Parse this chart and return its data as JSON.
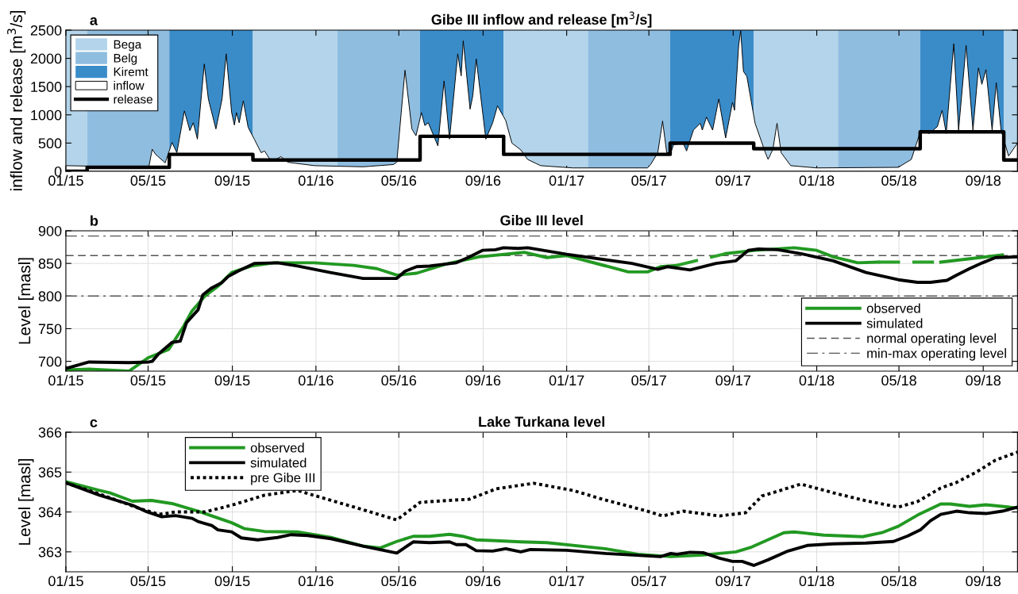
{
  "chart_data": [
    {
      "type": "area",
      "title": "Gibe III inflow and release [m$^{3}$/s]",
      "ylabel": "inflow and release [m$^{3}$/s]",
      "annotations": [
        "a"
      ],
      "xlim": [
        "2015-01-01",
        "2018-10-21"
      ],
      "xticks": [
        {
          "value": "2015-01-01",
          "label": "01/15"
        },
        {
          "value": "2015-05-01",
          "label": "05/15"
        },
        {
          "value": "2015-09-01",
          "label": "09/15"
        },
        {
          "value": "2016-01-01",
          "label": "01/16"
        },
        {
          "value": "2016-05-01",
          "label": "05/16"
        },
        {
          "value": "2016-09-01",
          "label": "09/16"
        },
        {
          "value": "2017-01-01",
          "label": "01/17"
        },
        {
          "value": "2017-05-01",
          "label": "05/17"
        },
        {
          "value": "2017-09-01",
          "label": "09/17"
        },
        {
          "value": "2018-01-01",
          "label": "01/18"
        },
        {
          "value": "2018-05-01",
          "label": "05/18"
        },
        {
          "value": "2018-09-01",
          "label": "09/18"
        }
      ],
      "ylim": [
        0,
        2500
      ],
      "yticks": [
        0,
        500,
        1000,
        1500,
        2000,
        2500
      ],
      "legend": "top left",
      "bands": [
        {
          "axis": "x",
          "from": "2015-01-01",
          "to": "2015-02-01",
          "label": "Bega",
          "color": "#b3d4ea"
        },
        {
          "axis": "x",
          "from": "2015-02-01",
          "to": "2015-06-01",
          "label": "Belg",
          "color": "#8fbde0"
        },
        {
          "axis": "x",
          "from": "2015-06-01",
          "to": "2015-10-01",
          "label": "Kiremt",
          "color": "#3a8cc9"
        },
        {
          "axis": "x",
          "from": "2015-10-01",
          "to": "2016-02-01",
          "color": "#b3d4ea"
        },
        {
          "axis": "x",
          "from": "2016-02-01",
          "to": "2016-06-01",
          "color": "#8fbde0"
        },
        {
          "axis": "x",
          "from": "2016-06-01",
          "to": "2016-10-01",
          "color": "#3a8cc9"
        },
        {
          "axis": "x",
          "from": "2016-10-01",
          "to": "2017-02-01",
          "color": "#b3d4ea"
        },
        {
          "axis": "x",
          "from": "2017-02-01",
          "to": "2017-06-01",
          "color": "#8fbde0"
        },
        {
          "axis": "x",
          "from": "2017-06-01",
          "to": "2017-10-01",
          "color": "#3a8cc9"
        },
        {
          "axis": "x",
          "from": "2017-10-01",
          "to": "2018-02-01",
          "color": "#b3d4ea"
        },
        {
          "axis": "x",
          "from": "2018-02-01",
          "to": "2018-06-01",
          "color": "#8fbde0"
        },
        {
          "axis": "x",
          "from": "2018-06-01",
          "to": "2018-10-01",
          "color": "#3a8cc9"
        },
        {
          "axis": "x",
          "from": "2018-10-01",
          "to": "2018-10-21",
          "color": "#b3d4ea"
        }
      ],
      "series": [
        {
          "name": "inflow",
          "type": "area",
          "color": "#ffffff",
          "x": [
            "2015-01-01",
            "2015-05-02",
            "2015-05-07",
            "2015-05-12",
            "2015-05-26",
            "2015-06-05",
            "2015-06-12",
            "2015-06-23",
            "2015-07-01",
            "2015-07-06",
            "2015-07-12",
            "2015-07-22",
            "2015-07-28",
            "2015-08-08",
            "2015-08-17",
            "2015-08-23",
            "2015-08-31",
            "2015-09-04",
            "2015-09-07",
            "2015-09-11",
            "2015-09-17",
            "2015-09-24",
            "2015-10-03",
            "2015-10-13",
            "2015-10-18",
            "2015-10-28",
            "2015-11-11",
            "2015-11-21",
            "2015-12-30",
            "2016-03-10",
            "2016-04-23",
            "2016-04-28",
            "2016-05-10",
            "2016-05-20",
            "2016-05-26",
            "2016-06-03",
            "2016-06-08",
            "2016-06-13",
            "2016-06-27",
            "2016-07-06",
            "2016-07-14",
            "2016-07-26",
            "2016-07-31",
            "2016-08-03",
            "2016-08-13",
            "2016-08-17",
            "2016-08-22",
            "2016-09-05",
            "2016-09-15",
            "2016-09-22",
            "2016-10-04",
            "2016-10-13",
            "2016-10-26",
            "2016-11-05",
            "2016-11-24",
            "2017-01-10",
            "2017-04-29",
            "2017-05-04",
            "2017-05-14",
            "2017-05-21",
            "2017-05-27",
            "2017-06-02",
            "2017-06-06",
            "2017-06-20",
            "2017-06-25",
            "2017-07-05",
            "2017-07-15",
            "2017-07-18",
            "2017-07-24",
            "2017-08-02",
            "2017-08-11",
            "2017-08-21",
            "2017-08-31",
            "2017-09-03",
            "2017-09-09",
            "2017-09-12",
            "2017-09-16",
            "2017-09-21",
            "2017-10-03",
            "2017-10-18",
            "2017-10-22",
            "2017-10-29",
            "2017-11-04",
            "2017-11-10",
            "2017-11-24",
            "2018-01-01",
            "2018-04-30",
            "2018-05-19",
            "2018-06-02",
            "2018-06-14",
            "2018-06-26",
            "2018-07-03",
            "2018-07-09",
            "2018-07-20",
            "2018-07-27",
            "2018-08-07",
            "2018-08-17",
            "2018-08-25",
            "2018-08-30",
            "2018-09-05",
            "2018-09-14",
            "2018-09-20",
            "2018-09-27",
            "2018-10-08",
            "2018-10-21"
          ],
          "values": [
            100,
            70,
            390,
            300,
            150,
            510,
            330,
            1070,
            720,
            860,
            570,
            1900,
            1280,
            750,
            1280,
            2080,
            1040,
            820,
            1040,
            860,
            1250,
            780,
            570,
            330,
            360,
            170,
            260,
            160,
            100,
            80,
            120,
            160,
            1790,
            750,
            630,
            1040,
            810,
            860,
            450,
            1600,
            570,
            2080,
            1690,
            2310,
            1100,
            1340,
            1990,
            570,
            860,
            1160,
            900,
            500,
            380,
            210,
            100,
            60,
            60,
            130,
            330,
            890,
            330,
            330,
            470,
            500,
            360,
            730,
            850,
            730,
            960,
            730,
            1280,
            590,
            1220,
            1080,
            2230,
            2490,
            1770,
            1680,
            850,
            330,
            210,
            390,
            850,
            330,
            100,
            60,
            70,
            210,
            730,
            670,
            790,
            1080,
            670,
            2260,
            730,
            2230,
            730,
            1830,
            1540,
            1800,
            730,
            1570,
            730,
            270,
            500
          ]
        },
        {
          "name": "release",
          "type": "step",
          "color": "#000000",
          "x": [
            "2015-01-01",
            "2015-02-01",
            "2015-06-01",
            "2015-10-01",
            "2016-06-01",
            "2016-10-01",
            "2017-06-01",
            "2017-10-01",
            "2018-06-01",
            "2018-10-01",
            "2018-10-21"
          ],
          "values": [
            0,
            70,
            300,
            200,
            620,
            300,
            500,
            400,
            700,
            200,
            200
          ]
        }
      ]
    },
    {
      "type": "line",
      "title": "Gibe III level",
      "ylabel": "Level [masl]",
      "annotations": [
        "b"
      ],
      "xlim": [
        "2015-01-01",
        "2018-10-21"
      ],
      "xticks": [
        {
          "value": "2015-01-01",
          "label": "01/15"
        },
        {
          "value": "2015-05-01",
          "label": "05/15"
        },
        {
          "value": "2015-09-01",
          "label": "09/15"
        },
        {
          "value": "2016-01-01",
          "label": "01/16"
        },
        {
          "value": "2016-05-01",
          "label": "05/16"
        },
        {
          "value": "2016-09-01",
          "label": "09/16"
        },
        {
          "value": "2017-01-01",
          "label": "01/17"
        },
        {
          "value": "2017-05-01",
          "label": "05/17"
        },
        {
          "value": "2017-09-01",
          "label": "09/17"
        },
        {
          "value": "2018-01-01",
          "label": "01/18"
        },
        {
          "value": "2018-05-01",
          "label": "05/18"
        },
        {
          "value": "2018-09-01",
          "label": "09/18"
        }
      ],
      "ylim": [
        685,
        900
      ],
      "yticks": [
        700,
        750,
        800,
        850,
        900
      ],
      "grid": true,
      "legend": "bottom right",
      "ref_lines": [
        {
          "axis": "y",
          "value": 862,
          "label": "normal operating level",
          "color": "#555555",
          "line_style": "dashed"
        },
        {
          "axis": "y",
          "value": 892,
          "label": "min-max operating level",
          "color": "#555555",
          "line_style": "dashdot"
        },
        {
          "axis": "y",
          "value": 800,
          "color": "#555555",
          "line_style": "dashdot"
        }
      ],
      "series": [
        {
          "name": "observed",
          "color": "#229922",
          "x": [
            "2015-01-01",
            "2015-02-04",
            "2015-04-03",
            "2015-05-02",
            "2015-05-31",
            "2015-06-22",
            "2015-07-04",
            "2015-07-23",
            "2015-08-11",
            "2015-08-31",
            "2015-09-29",
            "2015-11-01",
            "2015-12-29",
            "2016-02-25",
            "2016-03-30",
            "2016-04-28",
            "2016-05-27",
            "2016-07-09",
            "2016-08-26",
            "2016-10-22",
            "2016-10-31",
            "2016-12-03",
            "2017-01-01",
            "2017-04-01",
            "2017-04-29",
            "2017-05-18",
            "2017-06-11",
            "2017-07-17",
            "2017-08-21",
            "2017-10-03",
            "2017-11-29",
            "2018-01-01",
            "2018-01-25",
            "2018-03-02",
            "2018-04-01",
            "2018-05-15",
            "2018-07-01",
            "2018-09-29"
          ],
          "values": [
            687,
            688,
            685,
            706,
            718,
            754,
            777,
            800,
            815,
            836,
            846,
            851,
            851,
            847,
            842,
            832,
            835,
            849,
            860,
            866,
            867,
            859,
            862,
            837,
            837,
            845,
            847,
            null,
            865,
            870,
            874,
            870,
            860,
            851,
            852,
            null,
            852,
            863
          ]
        },
        {
          "name": "simulated",
          "color": "#000000",
          "x": [
            "2015-01-01",
            "2015-02-04",
            "2015-04-03",
            "2015-05-02",
            "2015-05-07",
            "2015-05-16",
            "2015-06-05",
            "2015-06-17",
            "2015-06-26",
            "2015-07-13",
            "2015-07-20",
            "2015-08-01",
            "2015-08-16",
            "2015-08-26",
            "2015-09-09",
            "2015-10-03",
            "2015-11-06",
            "2015-12-05",
            "2016-01-22",
            "2016-03-10",
            "2016-04-28",
            "2016-05-10",
            "2016-05-27",
            "2016-06-15",
            "2016-07-24",
            "2016-08-12",
            "2016-08-31",
            "2016-09-19",
            "2016-10-01",
            "2016-10-22",
            "2016-11-05",
            "2017-01-01",
            "2017-04-06",
            "2017-05-14",
            "2017-05-28",
            "2017-06-30",
            "2017-08-07",
            "2017-09-05",
            "2017-09-23",
            "2017-10-08",
            "2017-11-05",
            "2017-12-09",
            "2018-01-25",
            "2018-03-14",
            "2018-04-30",
            "2018-05-28",
            "2018-06-16",
            "2018-07-10",
            "2018-07-24",
            "2018-08-12",
            "2018-08-31",
            "2018-09-19",
            "2018-10-21"
          ],
          "values": [
            689,
            699,
            698,
            699,
            700,
            711,
            729,
            731,
            759,
            779,
            802,
            812,
            820,
            830,
            838,
            850,
            851,
            846,
            836,
            827,
            827,
            838,
            845,
            846,
            851,
            860,
            870,
            871,
            874,
            873,
            874,
            864,
            850,
            841,
            845,
            840,
            850,
            854,
            870,
            872,
            871,
            865,
            854,
            836,
            825,
            821,
            821,
            824,
            832,
            842,
            851,
            859,
            860
          ]
        },
        {
          "color": "#2aa12a",
          "line_style": "dashed",
          "x": [
            "2017-06-11",
            "2017-08-21",
            "2017-12-06",
            "2018-04-01",
            "2018-07-01"
          ],
          "values": [
            847,
            865,
            null,
            852,
            852
          ]
        }
      ]
    },
    {
      "type": "line",
      "title": "Lake Turkana level",
      "ylabel": "Level [masl]",
      "annotations": [
        "c"
      ],
      "xlim": [
        "2015-01-01",
        "2018-10-21"
      ],
      "xticks": [
        {
          "value": "2015-01-01",
          "label": "01/15"
        },
        {
          "value": "2015-05-01",
          "label": "05/15"
        },
        {
          "value": "2015-09-01",
          "label": "09/15"
        },
        {
          "value": "2016-01-01",
          "label": "01/16"
        },
        {
          "value": "2016-05-01",
          "label": "05/16"
        },
        {
          "value": "2016-09-01",
          "label": "09/16"
        },
        {
          "value": "2017-01-01",
          "label": "01/17"
        },
        {
          "value": "2017-05-01",
          "label": "05/17"
        },
        {
          "value": "2017-09-01",
          "label": "09/17"
        },
        {
          "value": "2018-01-01",
          "label": "01/18"
        },
        {
          "value": "2018-05-01",
          "label": "05/18"
        },
        {
          "value": "2018-09-01",
          "label": "09/18"
        }
      ],
      "ylim": [
        362.5,
        366
      ],
      "yticks": [
        363,
        364,
        365,
        366
      ],
      "grid": true,
      "legend": "top left",
      "series": [
        {
          "name": "observed",
          "color": "#229922",
          "x": [
            "2015-01-01",
            "2015-02-19",
            "2015-03-06",
            "2015-04-08",
            "2015-05-06",
            "2015-06-05",
            "2015-07-13",
            "2015-08-31",
            "2015-09-19",
            "2015-10-18",
            "2015-12-05",
            "2016-01-23",
            "2016-03-11",
            "2016-04-04",
            "2016-04-28",
            "2016-05-22",
            "2016-06-15",
            "2016-07-14",
            "2016-08-02",
            "2016-08-22",
            "2016-09-19",
            "2016-10-26",
            "2016-12-03",
            "2017-02-26",
            "2017-04-15",
            "2017-06-02",
            "2017-07-19",
            "2017-09-05",
            "2017-09-28",
            "2017-11-14",
            "2017-11-29",
            "2018-01-11",
            "2018-03-09",
            "2018-04-06",
            "2018-04-30",
            "2018-05-28",
            "2018-07-01",
            "2018-07-15",
            "2018-08-12",
            "2018-09-05",
            "2018-10-21"
          ],
          "values": [
            364.76,
            364.54,
            364.48,
            364.27,
            364.29,
            364.21,
            364.02,
            363.73,
            363.58,
            363.51,
            363.5,
            363.36,
            363.14,
            363.1,
            363.26,
            363.39,
            363.39,
            363.44,
            363.39,
            363.3,
            363.28,
            363.25,
            363.23,
            363.08,
            362.94,
            362.88,
            362.92,
            363.0,
            363.12,
            363.48,
            363.5,
            363.42,
            363.38,
            363.48,
            363.64,
            363.92,
            364.2,
            364.2,
            364.14,
            364.18,
            364.1
          ]
        },
        {
          "name": "simulated",
          "color": "#000000",
          "x": [
            "2015-01-01",
            "2015-02-19",
            "2015-04-08",
            "2015-04-27",
            "2015-05-21",
            "2015-06-10",
            "2015-07-04",
            "2015-07-13",
            "2015-08-02",
            "2015-08-11",
            "2015-08-31",
            "2015-09-14",
            "2015-10-08",
            "2015-11-06",
            "2015-11-26",
            "2015-12-20",
            "2016-01-23",
            "2016-03-11",
            "2016-04-28",
            "2016-05-22",
            "2016-06-15",
            "2016-07-14",
            "2016-07-24",
            "2016-08-07",
            "2016-08-22",
            "2016-09-15",
            "2016-10-04",
            "2016-10-26",
            "2016-11-09",
            "2017-01-01",
            "2017-02-26",
            "2017-05-18",
            "2017-06-02",
            "2017-06-11",
            "2017-06-30",
            "2017-07-19",
            "2017-08-12",
            "2017-08-31",
            "2017-09-14",
            "2017-10-01",
            "2017-10-22",
            "2017-11-20",
            "2017-12-18",
            "2018-01-25",
            "2018-03-14",
            "2018-04-23",
            "2018-05-14",
            "2018-06-02",
            "2018-06-16",
            "2018-07-01",
            "2018-07-24",
            "2018-08-12",
            "2018-09-05",
            "2018-09-29",
            "2018-10-21"
          ],
          "values": [
            364.73,
            364.42,
            364.17,
            364.02,
            363.88,
            363.91,
            363.84,
            363.76,
            363.66,
            363.55,
            363.5,
            363.35,
            363.3,
            363.36,
            363.43,
            363.41,
            363.33,
            363.14,
            362.97,
            363.25,
            363.23,
            363.25,
            363.18,
            363.18,
            363.03,
            363.02,
            363.08,
            363.0,
            363.06,
            363.04,
            362.96,
            362.88,
            362.96,
            362.94,
            362.99,
            362.98,
            362.84,
            362.76,
            362.76,
            362.66,
            362.8,
            363.02,
            363.16,
            363.2,
            363.22,
            363.26,
            363.4,
            363.56,
            363.78,
            363.94,
            364.02,
            363.98,
            363.96,
            364.02,
            364.12
          ]
        },
        {
          "name": "pre Gibe III",
          "color": "#000000",
          "line_style": "dotted",
          "x": [
            "2015-01-01",
            "2015-02-19",
            "2015-04-18",
            "2015-05-17",
            "2015-06-10",
            "2015-07-23",
            "2015-08-31",
            "2015-10-18",
            "2015-12-05",
            "2016-01-23",
            "2016-03-11",
            "2016-04-28",
            "2016-06-01",
            "2016-06-25",
            "2016-08-12",
            "2016-09-20",
            "2016-11-14",
            "2017-01-10",
            "2017-02-26",
            "2017-04-25",
            "2017-05-21",
            "2017-06-20",
            "2017-08-12",
            "2017-09-19",
            "2017-10-13",
            "2017-11-05",
            "2017-12-09",
            "2018-01-25",
            "2018-03-14",
            "2018-04-30",
            "2018-05-28",
            "2018-07-01",
            "2018-07-24",
            "2018-08-22",
            "2018-09-19",
            "2018-10-21"
          ],
          "values": [
            364.73,
            364.45,
            364.09,
            363.94,
            364.0,
            364.0,
            364.17,
            364.42,
            364.54,
            364.29,
            364.05,
            363.8,
            364.24,
            364.27,
            364.32,
            364.58,
            364.72,
            364.54,
            364.3,
            364.04,
            363.9,
            364.02,
            363.9,
            363.98,
            364.4,
            364.52,
            364.7,
            364.48,
            364.28,
            364.12,
            364.26,
            364.6,
            364.74,
            365.0,
            365.3,
            365.5
          ]
        }
      ]
    }
  ]
}
